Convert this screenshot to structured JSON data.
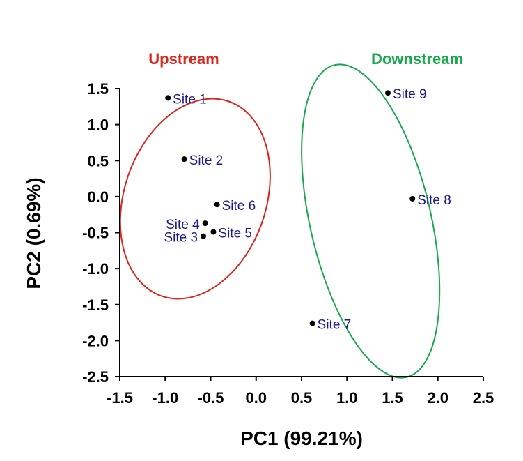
{
  "chart_data": {
    "type": "scatter",
    "xlabel": "PC1 (99.21%)",
    "ylabel": "PC2 (0.69%)",
    "xlim": [
      -1.5,
      2.5
    ],
    "ylim": [
      -2.5,
      1.5
    ],
    "xticks": [
      -1.5,
      -1.0,
      -0.5,
      0.0,
      0.5,
      1.0,
      1.5,
      2.0,
      2.5
    ],
    "xtick_labels": [
      "-1.5",
      "-1.0",
      "-0.5",
      "0.0",
      "0.5",
      "1.0",
      "1.5",
      "2.0",
      "2.5"
    ],
    "yticks": [
      1.5,
      1.0,
      0.5,
      0.0,
      -0.5,
      -1.0,
      -1.5,
      -2.0,
      -2.5
    ],
    "ytick_labels": [
      "1.5",
      "1.0",
      "0.5",
      "0.0",
      "-0.5",
      "-1.0",
      "-1.5",
      "-2.0",
      "-2.5"
    ],
    "grid": false,
    "point_color": "#000000",
    "label_color": "#1a1a8c",
    "points": [
      {
        "label": "Site 1",
        "x": -0.97,
        "y": 1.37,
        "label_side": "right"
      },
      {
        "label": "Site 2",
        "x": -0.79,
        "y": 0.52,
        "label_side": "right"
      },
      {
        "label": "Site 3",
        "x": -0.58,
        "y": -0.55,
        "label_side": "left"
      },
      {
        "label": "Site 4",
        "x": -0.56,
        "y": -0.37,
        "label_side": "left"
      },
      {
        "label": "Site 5",
        "x": -0.47,
        "y": -0.49,
        "label_side": "right"
      },
      {
        "label": "Site 6",
        "x": -0.43,
        "y": -0.11,
        "label_side": "right"
      },
      {
        "label": "Site 7",
        "x": 0.62,
        "y": -1.76,
        "label_side": "right"
      },
      {
        "label": "Site 8",
        "x": 1.72,
        "y": -0.03,
        "label_side": "right"
      },
      {
        "label": "Site 9",
        "x": 1.45,
        "y": 1.44,
        "label_side": "right"
      }
    ],
    "groups": [
      {
        "name": "Upstream",
        "color": "#d9261c",
        "members": [
          "Site 1",
          "Site 2",
          "Site 3",
          "Site 4",
          "Site 5",
          "Site 6"
        ],
        "ellipse": {
          "cx": -0.67,
          "cy": -0.03,
          "rx": 0.78,
          "ry": 1.43,
          "rotation_deg": 19
        }
      },
      {
        "name": "Downstream",
        "color": "#1aa84e",
        "members": [
          "Site 7",
          "Site 8",
          "Site 9"
        ],
        "ellipse": {
          "cx": 1.26,
          "cy": -0.34,
          "rx": 1.76,
          "ry": 0.84,
          "rotation_deg": 77
        }
      }
    ]
  }
}
